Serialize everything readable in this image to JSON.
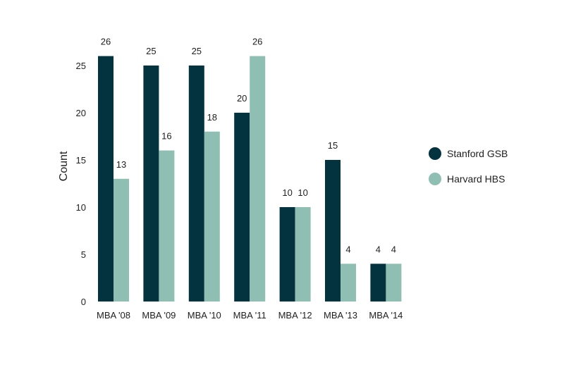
{
  "chart_data": {
    "type": "bar",
    "categories": [
      "MBA '08",
      "MBA '09",
      "MBA '10",
      "MBA '11",
      "MBA '12",
      "MBA '13",
      "MBA '14"
    ],
    "series": [
      {
        "name": "Stanford GSB",
        "color": "#043340",
        "values": [
          26,
          25,
          25,
          20,
          10,
          15,
          4
        ]
      },
      {
        "name": "Harvard HBS",
        "color": "#8fbfb2",
        "values": [
          13,
          16,
          18,
          26,
          10,
          4,
          4
        ]
      }
    ],
    "title": "",
    "xlabel": "",
    "ylabel": "Count",
    "ylim": [
      0,
      27
    ],
    "yticks": [
      0,
      5,
      10,
      15,
      20,
      25
    ],
    "grid": false,
    "data_labels": true,
    "legend_position": "right"
  }
}
